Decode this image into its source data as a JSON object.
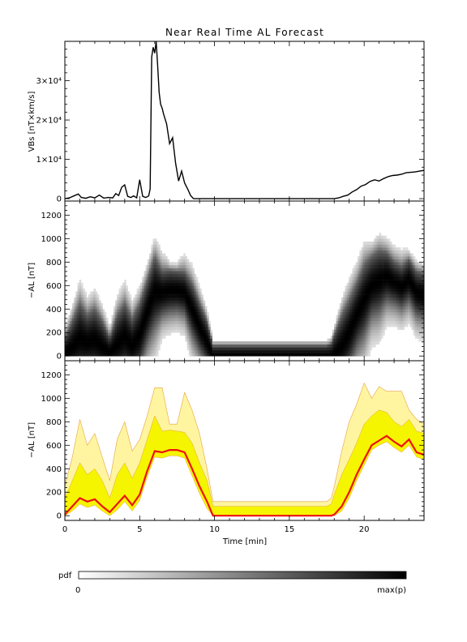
{
  "title": "Near Real Time AL Forecast",
  "colors": {
    "axis": "#000000",
    "line": "#000000",
    "median": "#ee1111",
    "band_inner": "#f5f500",
    "band_outer": "#fff5a0",
    "band_edge": "#e8a040",
    "pdf_min": "#ffffff",
    "pdf_max": "#000000"
  },
  "colorbar": {
    "label": "pdf",
    "min_label": "0",
    "max_label": "max(p)"
  },
  "chart_data": [
    {
      "type": "line",
      "panel": "vbs",
      "ylabel": "VBs [nT×km/s]",
      "ylim": [
        -600,
        40000
      ],
      "xlim": [
        0,
        24
      ],
      "yticks": [
        0,
        10000,
        20000,
        30000
      ],
      "ytick_labels": [
        "0",
        "1×10⁴",
        "2×10⁴",
        "3×10⁴"
      ],
      "series": [
        {
          "x": [
            0,
            0.3,
            0.6,
            0.9,
            1.1,
            1.4,
            1.7,
            2.0,
            2.3,
            2.6,
            2.9,
            3.2,
            3.4,
            3.6,
            3.8,
            4.0,
            4.2,
            4.4,
            4.6,
            4.8,
            5.0,
            5.2,
            5.4,
            5.6,
            5.7,
            5.8,
            5.9,
            6.0,
            6.1,
            6.2,
            6.3,
            6.4,
            6.5,
            6.6,
            6.8,
            7.0,
            7.2,
            7.4,
            7.6,
            7.8,
            8.0,
            8.2,
            8.4,
            8.6,
            8.8,
            9.0,
            9.5,
            10,
            11,
            12,
            13,
            14,
            15,
            16,
            17,
            17.5,
            18.0,
            18.3,
            18.6,
            18.9,
            19.2,
            19.5,
            19.8,
            20.1,
            20.4,
            20.7,
            21.0,
            21.3,
            21.6,
            21.9,
            22.2,
            22.5,
            22.8,
            23.1,
            23.4,
            23.7,
            24.0
          ],
          "y": [
            0,
            200,
            700,
            1200,
            300,
            100,
            500,
            200,
            900,
            150,
            300,
            200,
            1300,
            800,
            2900,
            3500,
            600,
            300,
            700,
            200,
            4800,
            600,
            300,
            700,
            2500,
            36000,
            38500,
            37000,
            40000,
            34000,
            27000,
            24000,
            23000,
            21500,
            19000,
            14000,
            15500,
            9000,
            4500,
            7000,
            4000,
            2500,
            800,
            0,
            0,
            0,
            0,
            0,
            0,
            0,
            0,
            0,
            0,
            0,
            0,
            0,
            0,
            200,
            600,
            900,
            1700,
            2300,
            3200,
            3600,
            4400,
            4800,
            4500,
            5100,
            5600,
            5900,
            6000,
            6200,
            6600,
            6700,
            6800,
            7000,
            7200
          ]
        }
      ]
    },
    {
      "type": "heatmap",
      "panel": "pdf",
      "ylabel": "−AL [nT]",
      "ylim": [
        -40,
        1320
      ],
      "xlim": [
        0,
        24
      ],
      "yticks": [
        0,
        200,
        400,
        600,
        800,
        1000,
        1200
      ],
      "note": "Probability density of forecast −AL over time; darker cells indicate higher probability."
    },
    {
      "type": "area",
      "panel": "forecast",
      "ylabel": "−AL [nT]",
      "xlabel": "Time [min]",
      "ylim": [
        -40,
        1320
      ],
      "xlim": [
        0,
        24
      ],
      "xticks": [
        0,
        5,
        10,
        15,
        20
      ],
      "yticks": [
        0,
        200,
        400,
        600,
        800,
        1000,
        1200
      ],
      "x": [
        0,
        0.5,
        1.0,
        1.5,
        2.0,
        2.5,
        3.0,
        3.5,
        4.0,
        4.5,
        5.0,
        5.5,
        6.0,
        6.5,
        7.0,
        7.5,
        8.0,
        8.5,
        9.0,
        9.5,
        9.9,
        10.0,
        12,
        14,
        16,
        17.5,
        17.8,
        18.0,
        18.5,
        19.0,
        19.5,
        20.0,
        20.5,
        21.0,
        21.5,
        22.0,
        22.5,
        23.0,
        23.5,
        24.0
      ],
      "series": [
        {
          "name": "median",
          "values": [
            10,
            80,
            150,
            120,
            140,
            80,
            30,
            100,
            170,
            90,
            180,
            380,
            550,
            540,
            560,
            560,
            540,
            400,
            250,
            120,
            0,
            0,
            0,
            0,
            0,
            0,
            0,
            10,
            80,
            200,
            350,
            480,
            600,
            640,
            680,
            630,
            590,
            650,
            540,
            520
          ]
        },
        {
          "name": "band_low",
          "values": [
            0,
            40,
            100,
            70,
            90,
            40,
            0,
            50,
            120,
            40,
            130,
            330,
            500,
            490,
            510,
            510,
            490,
            340,
            190,
            60,
            0,
            0,
            0,
            0,
            0,
            0,
            0,
            0,
            40,
            150,
            300,
            430,
            560,
            600,
            630,
            580,
            540,
            600,
            500,
            480
          ]
        },
        {
          "name": "band_high",
          "values": [
            150,
            300,
            450,
            350,
            400,
            300,
            150,
            350,
            450,
            320,
            450,
            650,
            850,
            720,
            730,
            720,
            710,
            620,
            450,
            300,
            80,
            80,
            80,
            80,
            80,
            80,
            100,
            180,
            350,
            480,
            620,
            780,
            850,
            900,
            880,
            800,
            760,
            820,
            720,
            700
          ]
        },
        {
          "name": "upper",
          "values": [
            250,
            500,
            820,
            600,
            700,
            500,
            300,
            650,
            800,
            550,
            650,
            850,
            1090,
            1090,
            780,
            780,
            1050,
            900,
            700,
            400,
            120,
            120,
            120,
            120,
            120,
            120,
            150,
            250,
            550,
            800,
            950,
            1130,
            1000,
            1100,
            1060,
            1060,
            1060,
            900,
            820,
            780
          ]
        }
      ]
    }
  ]
}
